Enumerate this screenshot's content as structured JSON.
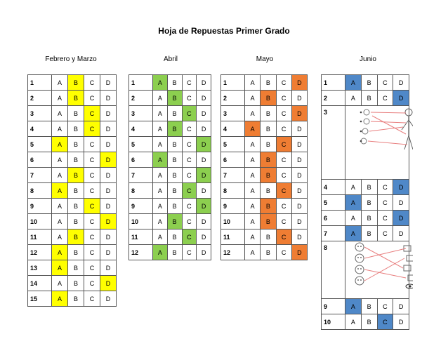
{
  "title": "Hoja de Repuestas Primer Grado",
  "colors": {
    "febrero": "#ffff00",
    "abril": "#8ccf4f",
    "mayo": "#ef7d33",
    "junio": "#4f88c8"
  },
  "months": [
    {
      "name": "Febrero y Marzo",
      "rows": [
        {
          "n": "1",
          "opts": [
            "A",
            "B",
            "C",
            "D"
          ],
          "ans": "B"
        },
        {
          "n": "2",
          "opts": [
            "A",
            "B",
            "C",
            "D"
          ],
          "ans": "B"
        },
        {
          "n": "3",
          "opts": [
            "A",
            "B",
            "C",
            "D"
          ],
          "ans": "C"
        },
        {
          "n": "4",
          "opts": [
            "A",
            "B",
            "C",
            "D"
          ],
          "ans": "C"
        },
        {
          "n": "5",
          "opts": [
            "A",
            "B",
            "C",
            "D"
          ],
          "ans": "A"
        },
        {
          "n": "6",
          "opts": [
            "A",
            "B",
            "C",
            "D"
          ],
          "ans": "D"
        },
        {
          "n": "7",
          "opts": [
            "A",
            "B",
            "C",
            "D"
          ],
          "ans": "B"
        },
        {
          "n": "8",
          "opts": [
            "A",
            "B",
            "C",
            "D"
          ],
          "ans": "A"
        },
        {
          "n": "9",
          "opts": [
            "A",
            "B",
            "C",
            "D"
          ],
          "ans": "C"
        },
        {
          "n": "10",
          "opts": [
            "A",
            "B",
            "C",
            "D"
          ],
          "ans": "D"
        },
        {
          "n": "11",
          "opts": [
            "A",
            "B",
            "C",
            "D"
          ],
          "ans": "B"
        },
        {
          "n": "12",
          "opts": [
            "A",
            "B",
            "C",
            "D"
          ],
          "ans": "A"
        },
        {
          "n": "13",
          "opts": [
            "A",
            "B",
            "C",
            "D"
          ],
          "ans": "A"
        },
        {
          "n": "14",
          "opts": [
            "A",
            "B",
            "C",
            "D"
          ],
          "ans": "D"
        },
        {
          "n": "15",
          "opts": [
            "A",
            "B",
            "C",
            "D"
          ],
          "ans": "A"
        }
      ]
    },
    {
      "name": "Abril",
      "rows": [
        {
          "n": "1",
          "opts": [
            "A",
            "B",
            "C",
            "D"
          ],
          "ans": "A"
        },
        {
          "n": "2",
          "opts": [
            "A",
            "B",
            "C",
            "D"
          ],
          "ans": "B"
        },
        {
          "n": "3",
          "opts": [
            "A",
            "B",
            "C",
            "D"
          ],
          "ans": "C"
        },
        {
          "n": "4",
          "opts": [
            "A",
            "B",
            "C",
            "D"
          ],
          "ans": "B"
        },
        {
          "n": "5",
          "opts": [
            "A",
            "B",
            "C",
            "D"
          ],
          "ans": "D"
        },
        {
          "n": "6",
          "opts": [
            "A",
            "B",
            "C",
            "D"
          ],
          "ans": "A"
        },
        {
          "n": "7",
          "opts": [
            "A",
            "B",
            "C",
            "D"
          ],
          "ans": "D"
        },
        {
          "n": "8",
          "opts": [
            "A",
            "B",
            "C",
            "D"
          ],
          "ans": "C"
        },
        {
          "n": "9",
          "opts": [
            "A",
            "B",
            "C",
            "D"
          ],
          "ans": "D"
        },
        {
          "n": "10",
          "opts": [
            "A",
            "B",
            "C",
            "D"
          ],
          "ans": "B"
        },
        {
          "n": "11",
          "opts": [
            "A",
            "B",
            "C",
            "D"
          ],
          "ans": "C"
        },
        {
          "n": "12",
          "opts": [
            "A",
            "B",
            "C",
            "D"
          ],
          "ans": "A"
        }
      ]
    },
    {
      "name": "Mayo",
      "rows": [
        {
          "n": "1",
          "opts": [
            "A",
            "B",
            "C",
            "D"
          ],
          "ans": "D"
        },
        {
          "n": "2",
          "opts": [
            "A",
            "B",
            "C",
            "D"
          ],
          "ans": "B"
        },
        {
          "n": "3",
          "opts": [
            "A",
            "B",
            "C",
            "D"
          ],
          "ans": "D"
        },
        {
          "n": "4",
          "opts": [
            "A",
            "B",
            "C",
            "D"
          ],
          "ans": "A"
        },
        {
          "n": "5",
          "opts": [
            "A",
            "B",
            "C",
            "D"
          ],
          "ans": "C"
        },
        {
          "n": "6",
          "opts": [
            "A",
            "B",
            "C",
            "D"
          ],
          "ans": "B"
        },
        {
          "n": "7",
          "opts": [
            "A",
            "B",
            "C",
            "D"
          ],
          "ans": "B"
        },
        {
          "n": "8",
          "opts": [
            "A",
            "B",
            "C",
            "D"
          ],
          "ans": "C"
        },
        {
          "n": "9",
          "opts": [
            "A",
            "B",
            "C",
            "D"
          ],
          "ans": "B"
        },
        {
          "n": "10",
          "opts": [
            "A",
            "B",
            "C",
            "D"
          ],
          "ans": "B"
        },
        {
          "n": "11",
          "opts": [
            "A",
            "B",
            "C",
            "D"
          ],
          "ans": "C"
        },
        {
          "n": "12",
          "opts": [
            "A",
            "B",
            "C",
            "D"
          ],
          "ans": "D"
        }
      ]
    },
    {
      "name": "Junio",
      "rows": [
        {
          "n": "1",
          "opts": [
            "A",
            "B",
            "C",
            "D"
          ],
          "ans": "A"
        },
        {
          "n": "2",
          "opts": [
            "A",
            "B",
            "C",
            "D"
          ],
          "ans": "D"
        },
        {
          "n": "3",
          "image": "matching-picture"
        },
        {
          "n": "4",
          "opts": [
            "A",
            "B",
            "C",
            "D"
          ],
          "ans": "D"
        },
        {
          "n": "5",
          "opts": [
            "A",
            "B",
            "C",
            "D"
          ],
          "ans": "A"
        },
        {
          "n": "6",
          "opts": [
            "A",
            "B",
            "C",
            "D"
          ],
          "ans": "D"
        },
        {
          "n": "7",
          "opts": [
            "A",
            "B",
            "C",
            "D"
          ],
          "ans": "A"
        },
        {
          "n": "8",
          "image": "matching-picture"
        },
        {
          "n": "9",
          "opts": [
            "A",
            "B",
            "C",
            "D"
          ],
          "ans": "A"
        },
        {
          "n": "10",
          "opts": [
            "A",
            "B",
            "C",
            "D"
          ],
          "ans": "C"
        }
      ]
    }
  ]
}
